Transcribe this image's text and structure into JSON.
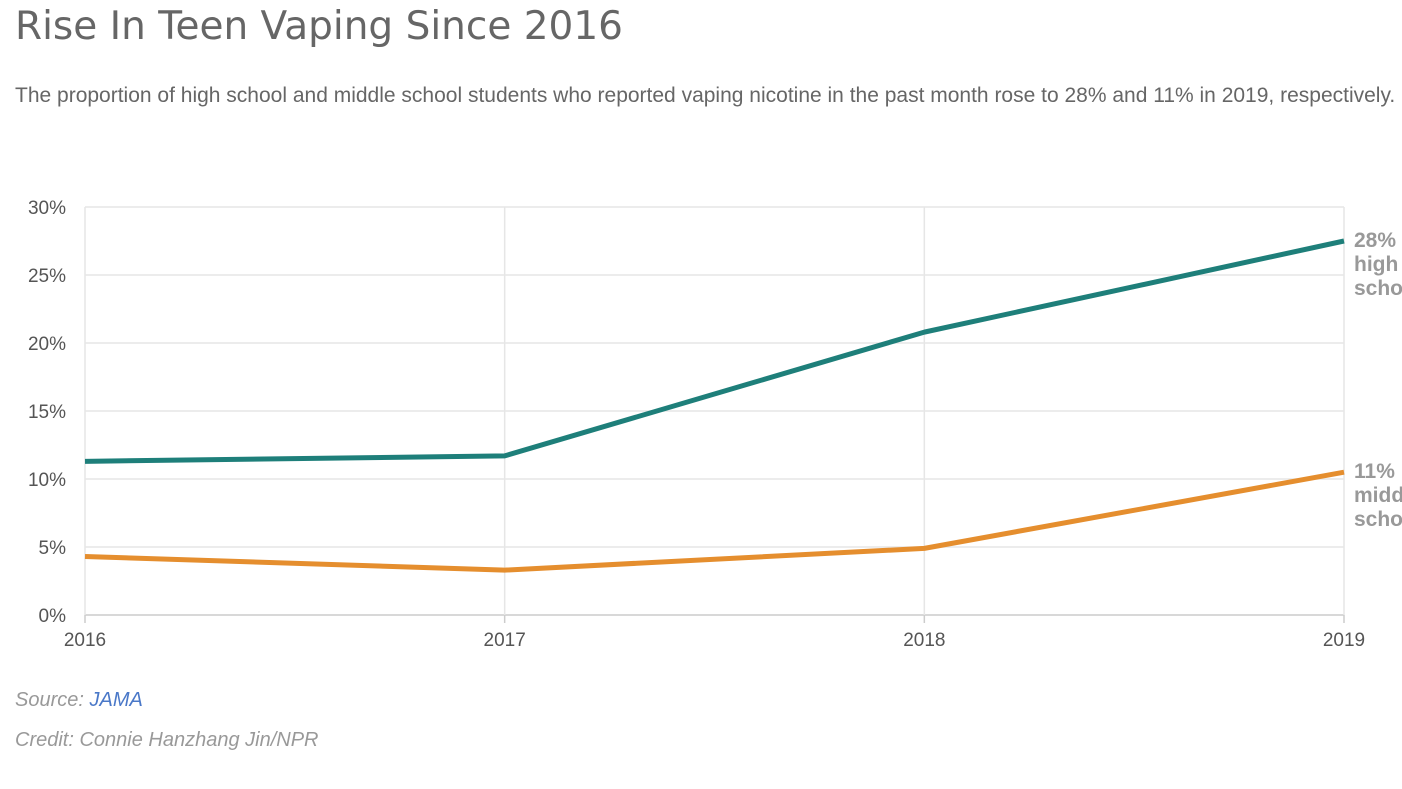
{
  "chart_data": {
    "type": "line",
    "title": "Rise In Teen Vaping Since 2016",
    "subtitle": "The proportion of high school and middle school students who reported vaping nicotine in the past month rose to 28% and 11% in 2019, respectively.",
    "x": [
      "2016",
      "2017",
      "2018",
      "2019"
    ],
    "y_ticks": [
      "0%",
      "5%",
      "10%",
      "15%",
      "20%",
      "25%",
      "30%"
    ],
    "ylim": [
      0,
      30
    ],
    "grid": true,
    "series": [
      {
        "name": "high school",
        "values": [
          11.3,
          11.7,
          20.8,
          27.5
        ],
        "color": "#1e7f7a",
        "end_value_label": "28%",
        "end_name_lines": [
          "high",
          "school"
        ]
      },
      {
        "name": "middle school",
        "values": [
          4.3,
          3.3,
          4.9,
          10.5
        ],
        "color": "#e58e2e",
        "end_value_label": "11%",
        "end_name_lines": [
          "middle",
          "school"
        ]
      }
    ]
  },
  "source": {
    "prefix": "Source: ",
    "link_text": "JAMA"
  },
  "credit": "Credit: Connie Hanzhang Jin/NPR"
}
